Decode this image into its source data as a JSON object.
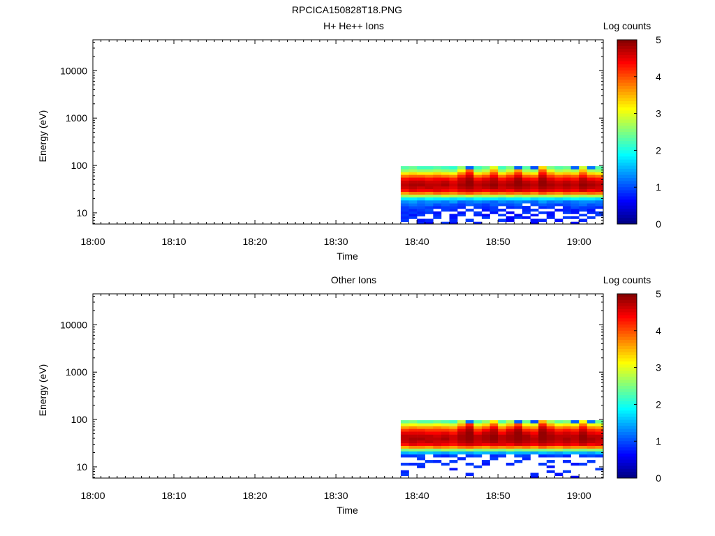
{
  "figure_title": "RPCICA150828T18.PNG",
  "chart_data": [
    {
      "type": "heatmap",
      "title": "H+ He++ Ions",
      "xlabel": "Time",
      "ylabel": "Energy (eV)",
      "x_ticks": [
        "18:00",
        "18:10",
        "18:20",
        "18:30",
        "18:40",
        "18:50",
        "19:00"
      ],
      "xlim": [
        "18:00",
        "19:03"
      ],
      "y_scale": "log",
      "ylim": [
        5.8,
        45000
      ],
      "y_ticks": [
        "10",
        "100",
        "1000",
        "10000"
      ],
      "colorbar": {
        "label": "Log counts",
        "range": [
          0,
          5
        ],
        "ticks": [
          "0",
          "1",
          "2",
          "3",
          "4",
          "5"
        ],
        "colormap": "jet"
      },
      "x": [
        "18:38",
        "18:39",
        "18:40",
        "18:41",
        "18:42",
        "18:43",
        "18:44",
        "18:45",
        "18:46",
        "18:47",
        "18:48",
        "18:49",
        "18:50",
        "18:51",
        "18:52",
        "18:53",
        "18:54",
        "18:55",
        "18:56",
        "18:57",
        "18:58",
        "18:59",
        "19:00",
        "19:01",
        "19:02"
      ],
      "y": [
        6,
        7,
        8,
        9,
        10,
        11.5,
        13,
        15,
        17,
        20,
        23,
        26,
        30,
        34,
        39,
        45,
        52,
        60,
        68,
        78,
        90
      ],
      "z": [
        [
          0.0,
          0.0,
          0.8,
          0.6,
          0.0,
          0.9,
          0.7,
          0.0,
          0.0,
          0.8,
          0.0,
          0.0,
          0.0,
          0.0,
          0.0,
          0.0,
          0.6,
          0.0,
          0.0,
          0.0,
          0.0,
          0.7,
          0.0,
          0.0,
          0.0
        ],
        [
          0.9,
          0.0,
          0.7,
          0.8,
          0.0,
          0.0,
          0.8,
          0.0,
          0.9,
          0.0,
          0.0,
          0.0,
          0.9,
          0.6,
          0.0,
          0.0,
          0.7,
          0.8,
          0.0,
          0.7,
          0.0,
          0.0,
          0.8,
          0.0,
          0.0
        ],
        [
          0.8,
          0.9,
          0.0,
          0.0,
          0.9,
          0.0,
          0.7,
          0.0,
          0.0,
          0.0,
          0.9,
          0.0,
          0.0,
          0.6,
          0.9,
          0.7,
          0.0,
          0.0,
          0.8,
          0.0,
          0.9,
          0.8,
          0.0,
          0.9,
          0.0
        ],
        [
          0.9,
          0.7,
          0.9,
          0.0,
          0.8,
          0.0,
          0.7,
          0.9,
          0.0,
          0.8,
          0.6,
          0.0,
          0.9,
          0.0,
          0.6,
          0.0,
          0.7,
          0.0,
          0.7,
          0.0,
          0.0,
          0.0,
          0.9,
          0.0,
          0.9
        ],
        [
          0.8,
          0.9,
          0.8,
          0.9,
          0.7,
          0.0,
          0.0,
          0.7,
          0.0,
          0.9,
          0.0,
          0.7,
          0.0,
          0.6,
          0.0,
          0.9,
          0.0,
          0.9,
          0.7,
          0.0,
          0.9,
          0.7,
          0.0,
          0.8,
          0.9
        ],
        [
          0.9,
          0.8,
          0.9,
          1.0,
          0.0,
          0.9,
          0.8,
          0.0,
          0.9,
          0.0,
          0.7,
          0.9,
          0.8,
          0.0,
          0.0,
          0.8,
          0.9,
          0.0,
          0.0,
          0.7,
          0.8,
          0.7,
          0.9,
          0.7,
          0.0
        ],
        [
          0.9,
          1.0,
          1.0,
          0.9,
          0.8,
          0.9,
          0.9,
          0.8,
          0.0,
          0.9,
          0.8,
          0.9,
          0.0,
          0.8,
          0.9,
          0.8,
          0.0,
          0.8,
          0.9,
          0.0,
          0.8,
          1.0,
          0.9,
          0.9,
          0.8
        ],
        [
          1.1,
          1.2,
          1.1,
          1.2,
          1.0,
          1.1,
          1.0,
          0.9,
          1.1,
          1.0,
          0.9,
          1.1,
          1.0,
          1.0,
          1.1,
          0.0,
          1.0,
          1.1,
          1.0,
          0.9,
          1.0,
          1.1,
          1.2,
          1.0,
          1.1
        ],
        [
          1.3,
          1.4,
          1.2,
          1.3,
          1.3,
          1.2,
          1.4,
          1.1,
          1.2,
          1.3,
          1.2,
          1.1,
          1.3,
          1.2,
          1.3,
          1.2,
          1.1,
          1.4,
          1.2,
          1.3,
          1.1,
          1.2,
          1.3,
          1.3,
          1.2
        ],
        [
          1.8,
          1.8,
          1.7,
          1.9,
          1.8,
          1.8,
          1.7,
          1.8,
          1.7,
          1.9,
          1.8,
          1.8,
          1.7,
          1.8,
          1.8,
          1.9,
          1.7,
          1.8,
          1.8,
          1.7,
          1.8,
          1.9,
          1.8,
          1.8,
          1.7
        ],
        [
          2.7,
          2.8,
          2.8,
          2.7,
          2.7,
          2.9,
          2.8,
          2.7,
          2.9,
          2.7,
          2.8,
          2.8,
          2.7,
          2.9,
          2.7,
          2.8,
          2.8,
          2.7,
          2.8,
          2.9,
          2.7,
          2.8,
          2.7,
          2.8,
          2.8
        ],
        [
          3.6,
          3.8,
          3.8,
          3.7,
          3.9,
          3.8,
          3.7,
          3.9,
          4.0,
          3.8,
          3.7,
          3.9,
          3.8,
          3.9,
          3.8,
          3.9,
          3.7,
          4.0,
          3.8,
          3.7,
          3.9,
          3.8,
          3.8,
          3.9,
          3.8
        ],
        [
          4.3,
          4.5,
          4.4,
          4.4,
          4.5,
          4.4,
          4.3,
          4.5,
          4.6,
          4.5,
          4.4,
          4.5,
          4.5,
          4.4,
          4.6,
          4.5,
          4.4,
          4.6,
          4.5,
          4.4,
          4.5,
          4.4,
          4.6,
          4.4,
          4.5
        ],
        [
          4.6,
          4.7,
          4.6,
          4.7,
          4.6,
          4.6,
          4.5,
          4.7,
          4.8,
          4.6,
          4.7,
          4.8,
          4.6,
          4.7,
          4.8,
          4.7,
          4.6,
          4.8,
          4.7,
          4.6,
          4.7,
          4.6,
          4.8,
          4.7,
          4.6
        ],
        [
          4.7,
          4.8,
          4.8,
          4.7,
          4.7,
          4.8,
          4.6,
          4.8,
          4.9,
          4.7,
          4.8,
          4.9,
          4.7,
          4.8,
          4.9,
          4.8,
          4.7,
          4.9,
          4.8,
          4.7,
          4.8,
          4.7,
          4.9,
          4.8,
          4.7
        ],
        [
          4.6,
          4.7,
          4.7,
          4.6,
          4.6,
          4.7,
          4.5,
          4.7,
          4.9,
          4.6,
          4.7,
          4.8,
          4.6,
          4.7,
          4.9,
          4.7,
          4.6,
          4.9,
          4.7,
          4.6,
          4.7,
          4.6,
          4.8,
          4.7,
          4.6
        ],
        [
          4.3,
          4.4,
          4.4,
          4.3,
          4.4,
          4.4,
          4.2,
          4.6,
          4.8,
          4.3,
          4.5,
          4.7,
          4.3,
          4.5,
          4.8,
          4.4,
          4.3,
          4.8,
          4.5,
          4.3,
          4.4,
          4.3,
          4.7,
          4.4,
          4.3
        ],
        [
          3.8,
          3.9,
          3.9,
          3.8,
          3.9,
          3.8,
          3.7,
          4.2,
          4.6,
          3.8,
          4.0,
          4.4,
          3.8,
          4.1,
          4.5,
          3.9,
          3.8,
          4.6,
          4.1,
          3.9,
          4.0,
          3.9,
          4.3,
          3.9,
          3.8
        ],
        [
          3.2,
          3.3,
          3.2,
          3.2,
          3.3,
          3.2,
          3.1,
          3.7,
          4.3,
          3.2,
          3.4,
          4.0,
          3.2,
          3.5,
          4.1,
          3.3,
          3.2,
          4.3,
          3.6,
          3.3,
          3.4,
          3.3,
          3.9,
          3.3,
          3.2
        ],
        [
          2.6,
          2.7,
          2.6,
          2.6,
          2.7,
          2.6,
          2.5,
          3.1,
          3.9,
          2.6,
          2.8,
          3.5,
          2.6,
          2.9,
          3.6,
          2.7,
          2.6,
          3.9,
          3.0,
          2.7,
          2.8,
          2.7,
          3.4,
          2.7,
          2.6
        ],
        [
          2.3,
          2.4,
          2.2,
          2.2,
          2.3,
          2.2,
          2.1,
          2.6,
          1.1,
          2.2,
          2.4,
          3.0,
          2.2,
          2.5,
          1.1,
          2.3,
          1.0,
          3.3,
          2.5,
          2.3,
          2.4,
          1.1,
          2.9,
          1.2,
          2.3
        ]
      ]
    },
    {
      "type": "heatmap",
      "title": "Other Ions",
      "xlabel": "Time",
      "ylabel": "Energy (eV)",
      "x_ticks": [
        "18:00",
        "18:10",
        "18:20",
        "18:30",
        "18:40",
        "18:50",
        "19:00"
      ],
      "xlim": [
        "18:00",
        "19:03"
      ],
      "y_scale": "log",
      "ylim": [
        5.8,
        45000
      ],
      "y_ticks": [
        "10",
        "100",
        "1000",
        "10000"
      ],
      "colorbar": {
        "label": "Log counts",
        "range": [
          0,
          5
        ],
        "ticks": [
          "0",
          "1",
          "2",
          "3",
          "4",
          "5"
        ],
        "colormap": "jet"
      },
      "x": [
        "18:38",
        "18:39",
        "18:40",
        "18:41",
        "18:42",
        "18:43",
        "18:44",
        "18:45",
        "18:46",
        "18:47",
        "18:48",
        "18:49",
        "18:50",
        "18:51",
        "18:52",
        "18:53",
        "18:54",
        "18:55",
        "18:56",
        "18:57",
        "18:58",
        "18:59",
        "19:00",
        "19:01",
        "19:02"
      ],
      "y": [
        6,
        7,
        8,
        9,
        10,
        11.5,
        13,
        15,
        17,
        20,
        23,
        26,
        30,
        34,
        39,
        45,
        52,
        60,
        68,
        78,
        90
      ],
      "z": [
        [
          0.0,
          0.0,
          0.0,
          0.0,
          0.0,
          0.0,
          0.0,
          0.0,
          0.0,
          0.0,
          0.0,
          0.0,
          0.0,
          0.0,
          0.0,
          0.0,
          0.7,
          0.0,
          0.0,
          0.0,
          0.0,
          0.6,
          0.0,
          0.0,
          0.0
        ],
        [
          0.9,
          0.0,
          0.0,
          0.0,
          0.0,
          0.0,
          0.0,
          0.0,
          0.8,
          0.0,
          0.0,
          0.0,
          0.0,
          0.0,
          0.0,
          0.0,
          0.8,
          0.0,
          0.0,
          0.7,
          0.0,
          0.0,
          0.0,
          0.0,
          0.0
        ],
        [
          0.8,
          0.0,
          0.0,
          0.0,
          0.0,
          0.0,
          0.0,
          0.0,
          0.0,
          0.0,
          0.0,
          0.0,
          0.0,
          0.0,
          0.0,
          0.0,
          0.0,
          0.0,
          0.8,
          0.0,
          0.9,
          0.0,
          0.0,
          0.0,
          0.0
        ],
        [
          0.0,
          0.0,
          0.0,
          0.0,
          0.0,
          0.0,
          0.7,
          0.0,
          0.0,
          0.0,
          0.0,
          0.0,
          0.0,
          0.0,
          0.0,
          0.0,
          0.0,
          0.0,
          0.0,
          0.0,
          0.0,
          0.0,
          0.0,
          0.0,
          0.9
        ],
        [
          0.0,
          0.0,
          0.8,
          0.0,
          0.0,
          0.0,
          0.0,
          0.0,
          0.0,
          0.9,
          0.0,
          0.0,
          0.0,
          0.0,
          0.0,
          0.0,
          0.0,
          0.0,
          0.7,
          0.0,
          0.0,
          0.0,
          0.0,
          0.0,
          0.0
        ],
        [
          0.9,
          0.8,
          0.9,
          0.0,
          0.0,
          0.9,
          0.0,
          0.0,
          0.9,
          0.0,
          0.7,
          0.0,
          0.0,
          0.8,
          0.0,
          0.0,
          0.0,
          0.9,
          0.0,
          0.0,
          0.0,
          0.7,
          0.9,
          0.0,
          0.0
        ],
        [
          0.0,
          0.0,
          0.0,
          0.9,
          0.8,
          0.0,
          0.9,
          0.0,
          0.0,
          0.0,
          0.8,
          0.0,
          0.0,
          0.0,
          0.9,
          0.0,
          0.0,
          0.0,
          0.9,
          0.0,
          0.8,
          0.0,
          0.0,
          0.9,
          0.0
        ],
        [
          0.0,
          0.0,
          0.9,
          0.0,
          0.0,
          0.0,
          0.0,
          0.8,
          0.0,
          0.0,
          0.0,
          0.9,
          0.0,
          0.0,
          0.0,
          0.8,
          0.0,
          0.0,
          0.0,
          0.0,
          0.0,
          0.0,
          0.0,
          0.0,
          0.0
        ],
        [
          0.9,
          0.9,
          1.0,
          0.0,
          0.9,
          0.8,
          1.0,
          0.0,
          0.9,
          1.0,
          0.0,
          0.8,
          0.9,
          0.0,
          1.0,
          0.9,
          0.0,
          0.8,
          0.9,
          1.0,
          0.8,
          0.0,
          0.9,
          1.0,
          0.9
        ],
        [
          1.5,
          1.6,
          1.5,
          1.6,
          1.5,
          1.4,
          1.6,
          1.5,
          1.4,
          1.6,
          1.5,
          1.5,
          1.4,
          1.6,
          1.5,
          1.5,
          1.4,
          1.6,
          1.5,
          1.4,
          1.6,
          1.5,
          1.5,
          1.4,
          1.6
        ],
        [
          2.5,
          2.6,
          2.6,
          2.5,
          2.5,
          2.7,
          2.6,
          2.5,
          2.7,
          2.5,
          2.6,
          2.6,
          2.5,
          2.7,
          2.5,
          2.6,
          2.6,
          2.5,
          2.6,
          2.7,
          2.5,
          2.6,
          2.5,
          2.6,
          2.6
        ],
        [
          3.5,
          3.7,
          3.7,
          3.6,
          3.8,
          3.7,
          3.6,
          3.8,
          3.9,
          3.7,
          3.6,
          3.8,
          3.7,
          3.8,
          3.7,
          3.8,
          3.6,
          3.9,
          3.7,
          3.6,
          3.8,
          3.7,
          3.7,
          3.8,
          3.7
        ],
        [
          4.3,
          4.5,
          4.4,
          4.4,
          4.5,
          4.4,
          4.3,
          4.5,
          4.6,
          4.5,
          4.4,
          4.5,
          4.5,
          4.4,
          4.6,
          4.5,
          4.4,
          4.6,
          4.5,
          4.4,
          4.5,
          4.4,
          4.6,
          4.4,
          4.5
        ],
        [
          4.6,
          4.7,
          4.6,
          4.7,
          4.6,
          4.6,
          4.5,
          4.7,
          4.8,
          4.6,
          4.7,
          4.8,
          4.6,
          4.7,
          4.8,
          4.7,
          4.6,
          4.8,
          4.7,
          4.6,
          4.7,
          4.6,
          4.8,
          4.7,
          4.6
        ],
        [
          4.7,
          4.8,
          4.8,
          4.7,
          4.7,
          4.8,
          4.6,
          4.8,
          4.9,
          4.7,
          4.8,
          4.9,
          4.7,
          4.8,
          4.9,
          4.8,
          4.7,
          4.9,
          4.8,
          4.7,
          4.8,
          4.7,
          4.9,
          4.8,
          4.7
        ],
        [
          4.7,
          4.7,
          4.7,
          4.7,
          4.6,
          4.7,
          4.6,
          4.8,
          4.9,
          4.7,
          4.8,
          4.9,
          4.7,
          4.8,
          4.9,
          4.8,
          4.6,
          4.9,
          4.8,
          4.7,
          4.7,
          4.7,
          4.9,
          4.7,
          4.7
        ],
        [
          4.5,
          4.5,
          4.5,
          4.4,
          4.4,
          4.5,
          4.3,
          4.7,
          4.9,
          4.4,
          4.7,
          4.8,
          4.4,
          4.7,
          4.9,
          4.6,
          4.4,
          4.9,
          4.7,
          4.5,
          4.6,
          4.5,
          4.8,
          4.5,
          4.4
        ],
        [
          4.1,
          4.2,
          4.2,
          4.1,
          4.1,
          4.1,
          4.0,
          4.5,
          4.8,
          4.1,
          4.4,
          4.7,
          4.1,
          4.5,
          4.8,
          4.2,
          4.1,
          4.8,
          4.5,
          4.2,
          4.3,
          4.2,
          4.6,
          4.2,
          4.1
        ],
        [
          3.6,
          3.7,
          3.6,
          3.6,
          3.7,
          3.6,
          3.5,
          4.1,
          4.6,
          3.6,
          3.9,
          4.4,
          3.6,
          4.0,
          4.5,
          3.7,
          3.6,
          4.6,
          4.1,
          3.7,
          3.8,
          3.7,
          4.3,
          3.7,
          3.6
        ],
        [
          3.0,
          3.1,
          3.0,
          3.0,
          3.1,
          3.0,
          2.9,
          3.5,
          4.2,
          3.0,
          3.3,
          3.9,
          3.0,
          3.4,
          4.0,
          3.1,
          3.0,
          4.2,
          3.5,
          3.1,
          3.2,
          3.1,
          3.8,
          3.1,
          3.0
        ],
        [
          2.4,
          2.5,
          2.3,
          2.3,
          2.4,
          2.3,
          2.2,
          2.8,
          1.2,
          2.3,
          2.6,
          3.2,
          2.3,
          2.7,
          1.1,
          2.4,
          1.0,
          3.5,
          2.7,
          2.4,
          2.5,
          1.1,
          3.1,
          1.2,
          2.4
        ]
      ]
    }
  ]
}
